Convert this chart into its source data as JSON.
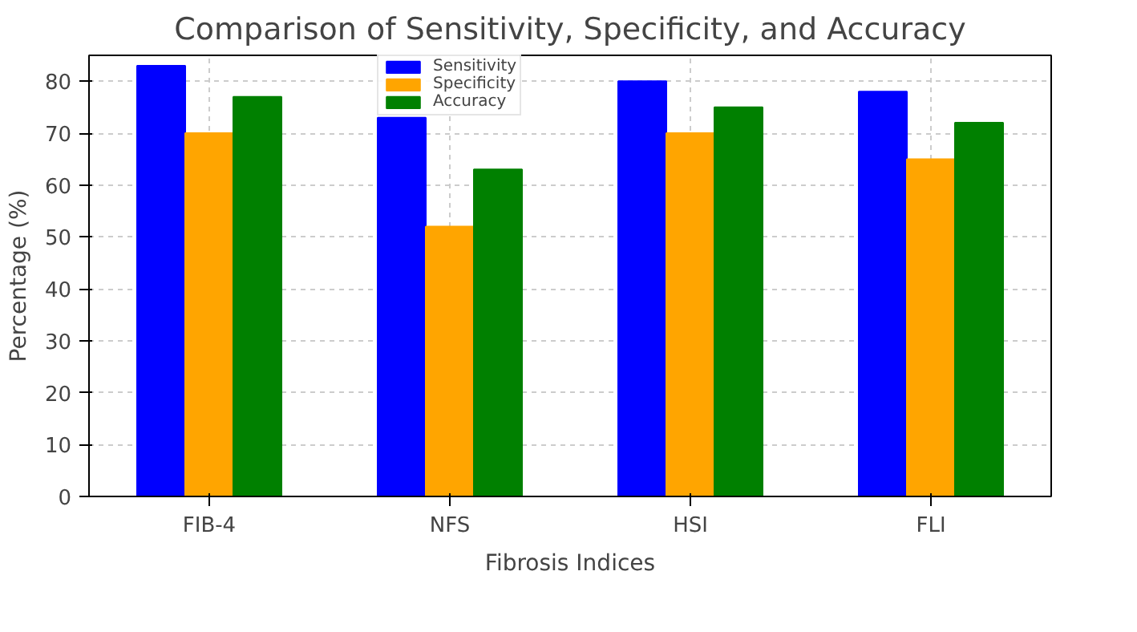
{
  "chart_data": {
    "type": "bar",
    "title": "Comparison of Sensitivity, Specificity, and Accuracy",
    "xlabel": "Fibrosis Indices",
    "ylabel": "Percentage (%)",
    "categories": [
      "FIB-4",
      "NFS",
      "HSI",
      "FLI"
    ],
    "series": [
      {
        "name": "Sensitivity",
        "color": "#0000ff",
        "values": [
          83,
          73,
          80,
          78
        ]
      },
      {
        "name": "Specificity",
        "color": "#ffa500",
        "values": [
          70,
          52,
          70,
          65
        ]
      },
      {
        "name": "Accuracy",
        "color": "#008000",
        "values": [
          77,
          63,
          75,
          72
        ]
      }
    ],
    "ylim": [
      0,
      85
    ],
    "yticks": [
      0,
      10,
      20,
      30,
      40,
      50,
      60,
      70,
      80
    ],
    "grid": true,
    "legend": "top"
  }
}
